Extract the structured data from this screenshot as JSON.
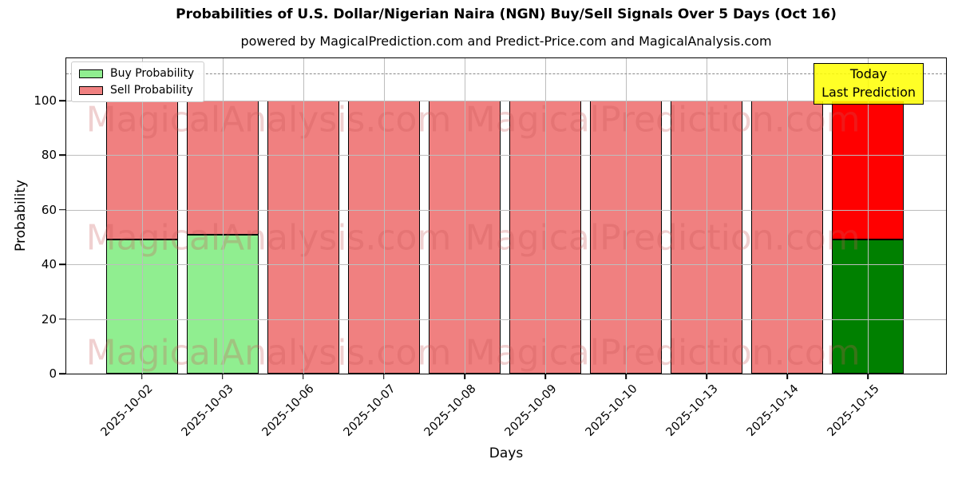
{
  "title": "Probabilities of U.S. Dollar/Nigerian Naira (NGN) Buy/Sell Signals Over 5 Days (Oct 16)",
  "subtitle": "powered by MagicalPrediction.com and Predict-Price.com and MagicalAnalysis.com",
  "chart_data": {
    "type": "bar",
    "stacked": true,
    "title": "Probabilities of U.S. Dollar/Nigerian Naira (NGN) Buy/Sell Signals Over 5 Days (Oct 16)",
    "subtitle": "powered by MagicalPrediction.com and Predict-Price.com and MagicalAnalysis.com",
    "xlabel": "Days",
    "ylabel": "Probability",
    "categories": [
      "2025-10-02",
      "2025-10-03",
      "2025-10-06",
      "2025-10-07",
      "2025-10-08",
      "2025-10-09",
      "2025-10-10",
      "2025-10-13",
      "2025-10-14",
      "2025-10-15"
    ],
    "series": [
      {
        "name": "Buy Probability",
        "legend_color": "#90ee90",
        "values": [
          49,
          51,
          0,
          0,
          0,
          0,
          0,
          0,
          0,
          49
        ],
        "colors": [
          "#90ee90",
          "#90ee90",
          "#90ee90",
          "#90ee90",
          "#90ee90",
          "#90ee90",
          "#90ee90",
          "#90ee90",
          "#90ee90",
          "#008000"
        ]
      },
      {
        "name": "Sell Probability",
        "legend_color": "#f08080",
        "values": [
          51,
          49,
          100,
          100,
          100,
          100,
          100,
          100,
          100,
          51
        ],
        "colors": [
          "#f08080",
          "#f08080",
          "#f08080",
          "#f08080",
          "#f08080",
          "#f08080",
          "#f08080",
          "#f08080",
          "#f08080",
          "#ff0000"
        ]
      }
    ],
    "ylim": [
      0,
      115.5
    ],
    "yticks": [
      0,
      20,
      40,
      60,
      80,
      100
    ],
    "grid": true,
    "legend_position": "upper-left",
    "threshold_line": {
      "y": 110,
      "style": "dashed",
      "color": "#8a8a8a"
    },
    "annotation": {
      "line1": "Today",
      "line2": "Last Prediction",
      "bg_color": "#ffff00"
    },
    "watermarks": {
      "left": "MagicalAnalysis.com",
      "right": "MagicalPrediction.com"
    },
    "bar_edge_color": "#000000"
  }
}
